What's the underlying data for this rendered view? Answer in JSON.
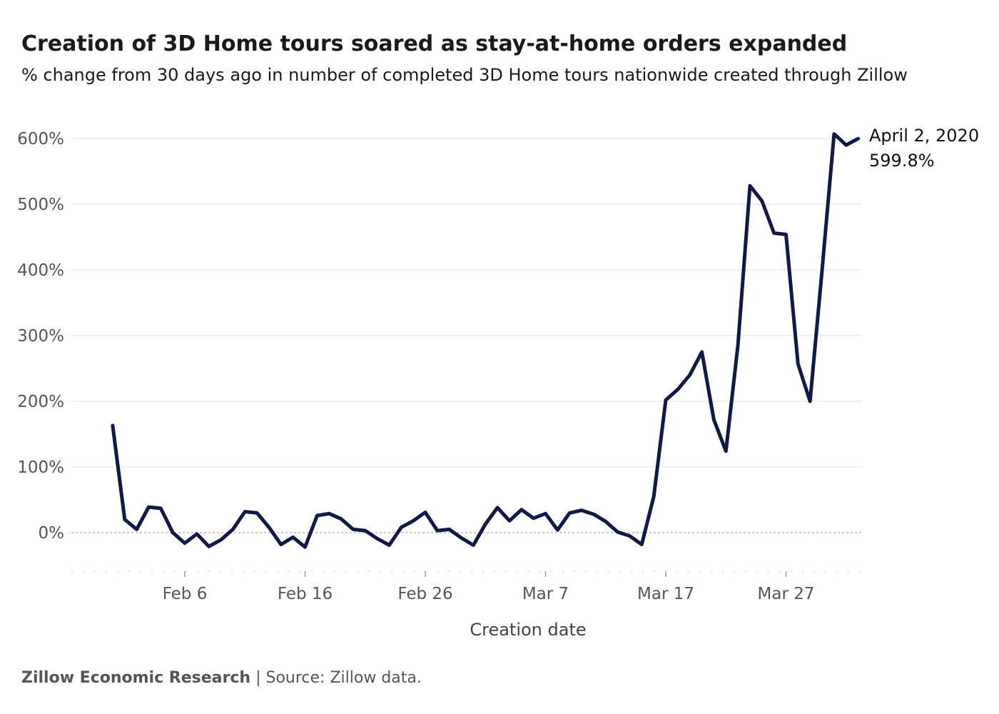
{
  "title": "Creation of 3D Home tours soared as stay-at-home orders expanded",
  "subtitle": "% change from 30 days ago in number of completed 3D Home tours nationwide created through Zillow",
  "footer": {
    "org": "Zillow Economic Research",
    "separator": "|",
    "source": "Source: Zillow data."
  },
  "chart_data": {
    "type": "line",
    "xlabel": "Creation date",
    "ylabel": "",
    "ylim": [
      -60,
      620
    ],
    "y_ticks": [
      0,
      100,
      200,
      300,
      400,
      500,
      600
    ],
    "y_tick_labels": [
      "0%",
      "100%",
      "200%",
      "300%",
      "400%",
      "500%",
      "600%"
    ],
    "x_ticks": [
      "2020-02-06",
      "2020-02-16",
      "2020-02-26",
      "2020-03-07",
      "2020-03-17",
      "2020-03-27"
    ],
    "x_tick_labels": [
      "Feb 6",
      "Feb 16",
      "Feb 26",
      "Mar 7",
      "Mar 17",
      "Mar 27"
    ],
    "grid": true,
    "line_color": "#0d1a4a",
    "x": [
      "2020-01-31",
      "2020-02-01",
      "2020-02-02",
      "2020-02-03",
      "2020-02-04",
      "2020-02-05",
      "2020-02-06",
      "2020-02-07",
      "2020-02-08",
      "2020-02-09",
      "2020-02-10",
      "2020-02-11",
      "2020-02-12",
      "2020-02-13",
      "2020-02-14",
      "2020-02-15",
      "2020-02-16",
      "2020-02-17",
      "2020-02-18",
      "2020-02-19",
      "2020-02-20",
      "2020-02-21",
      "2020-02-22",
      "2020-02-23",
      "2020-02-24",
      "2020-02-25",
      "2020-02-26",
      "2020-02-27",
      "2020-02-28",
      "2020-02-29",
      "2020-03-01",
      "2020-03-02",
      "2020-03-03",
      "2020-03-04",
      "2020-03-05",
      "2020-03-06",
      "2020-03-07",
      "2020-03-08",
      "2020-03-09",
      "2020-03-10",
      "2020-03-11",
      "2020-03-12",
      "2020-03-13",
      "2020-03-14",
      "2020-03-15",
      "2020-03-16",
      "2020-03-17",
      "2020-03-18",
      "2020-03-19",
      "2020-03-20",
      "2020-03-21",
      "2020-03-22",
      "2020-03-23",
      "2020-03-24",
      "2020-03-25",
      "2020-03-26",
      "2020-03-27",
      "2020-03-28",
      "2020-03-29",
      "2020-03-30",
      "2020-03-31",
      "2020-04-01",
      "2020-04-02"
    ],
    "values": [
      163,
      20,
      5,
      39,
      37,
      0,
      -16,
      -2,
      -21,
      -11,
      5,
      32,
      30,
      8,
      -18,
      -7,
      -22,
      26,
      29,
      21,
      5,
      3,
      -9,
      -19,
      8,
      18,
      31,
      3,
      5,
      -8,
      -19,
      13,
      38,
      18,
      35,
      22,
      29,
      4,
      30,
      34,
      28,
      17,
      1,
      -5,
      -18,
      55,
      202,
      218,
      240,
      275,
      172,
      124,
      285,
      528,
      505,
      456,
      454,
      257,
      200,
      400,
      607,
      590,
      599.8
    ],
    "annotation": {
      "date": "April 2, 2020",
      "value": "599.8%"
    }
  }
}
